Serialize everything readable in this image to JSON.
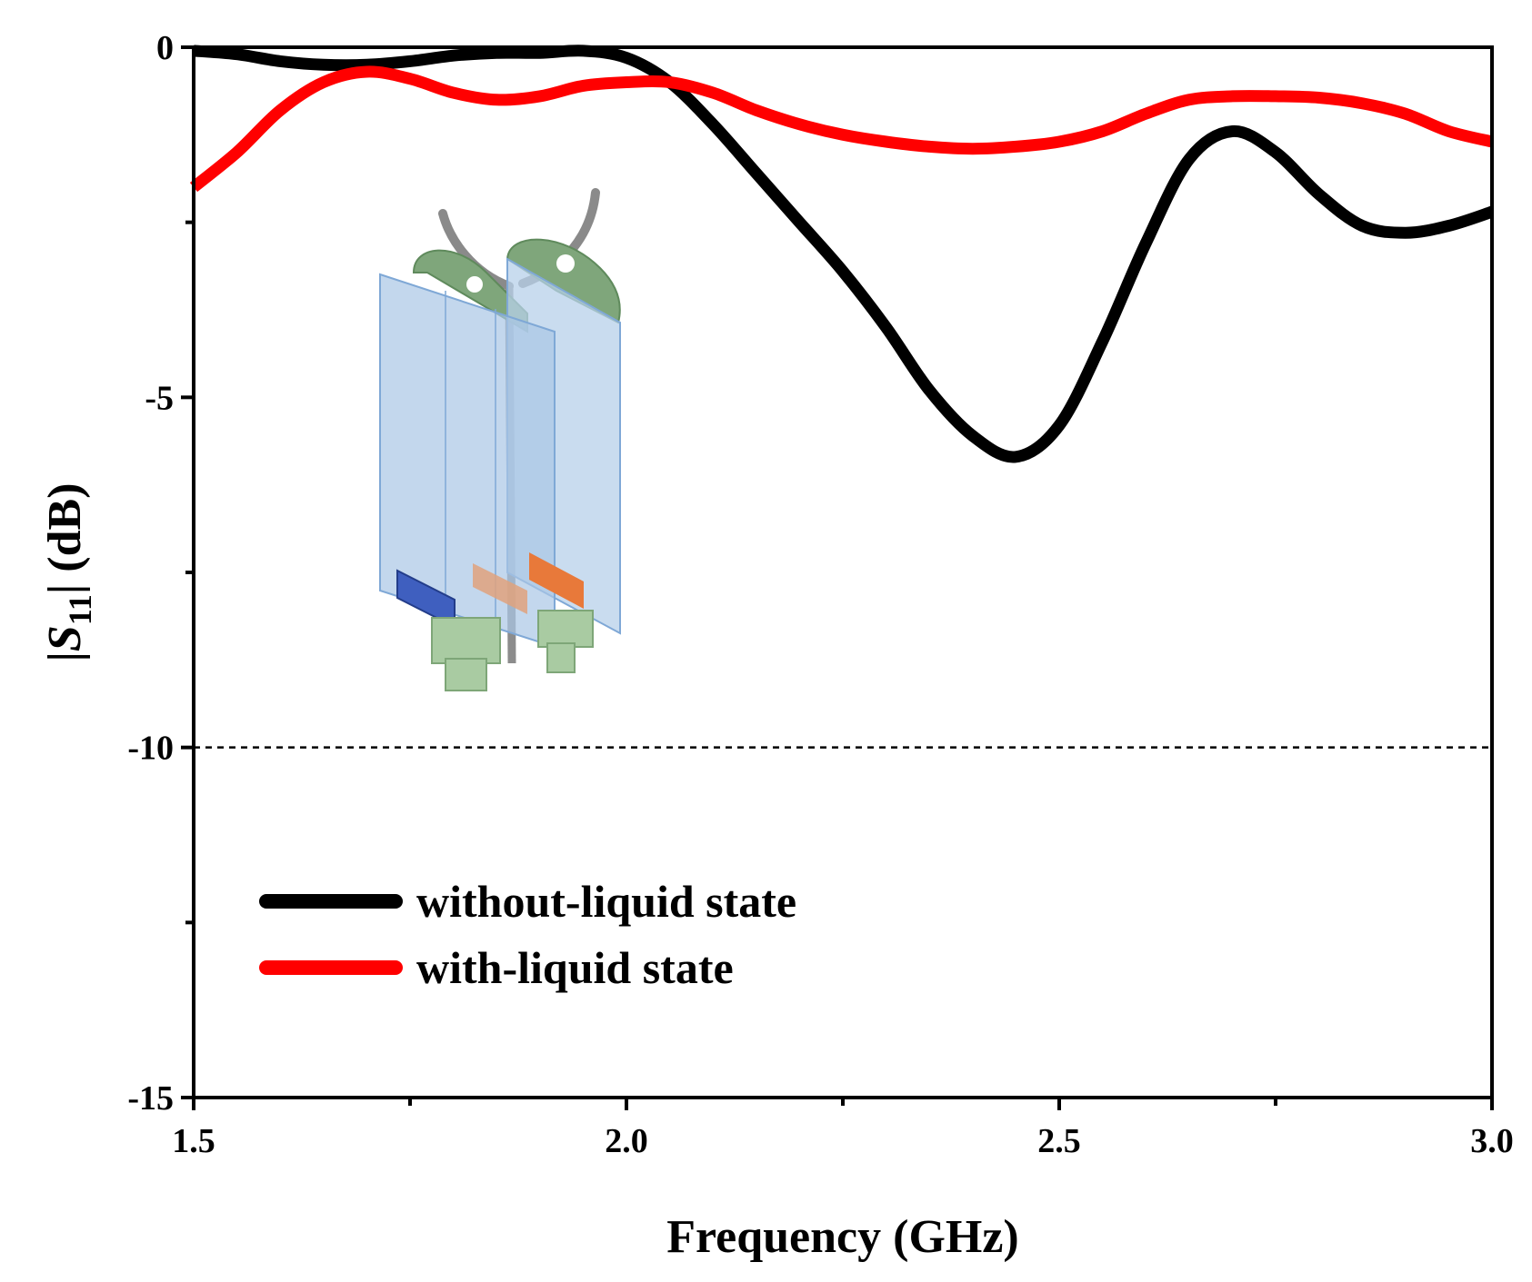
{
  "chart_data": {
    "type": "line",
    "title": "",
    "xlabel": "Frequency (GHz)",
    "ylabel_parts": {
      "prefix": "|",
      "symbol": "S",
      "subscript": "11",
      "suffix": "| (dB)"
    },
    "xlim": [
      1.5,
      3.0
    ],
    "ylim": [
      -15,
      0
    ],
    "x_major_ticks": [
      1.5,
      2.0,
      2.5,
      3.0
    ],
    "x_tick_labels": [
      "1.5",
      "2.0",
      "2.5",
      "3.0"
    ],
    "x_minor_ticks": [
      1.75,
      2.25,
      2.75
    ],
    "y_major_ticks": [
      0,
      -5,
      -10,
      -15
    ],
    "y_tick_labels": [
      "0",
      "-5",
      "-10",
      "-15"
    ],
    "y_minor_ticks": [
      -2.5,
      -7.5,
      -12.5
    ],
    "reference_line": {
      "y": -10,
      "style": "dashed"
    },
    "legend_position": "bottom-left",
    "series": [
      {
        "name": "without-liquid state",
        "color": "#000000",
        "x": [
          1.5,
          1.55,
          1.6,
          1.65,
          1.7,
          1.75,
          1.8,
          1.85,
          1.9,
          1.95,
          2.0,
          2.05,
          2.1,
          2.15,
          2.2,
          2.25,
          2.3,
          2.35,
          2.4,
          2.45,
          2.5,
          2.55,
          2.6,
          2.65,
          2.7,
          2.75,
          2.8,
          2.85,
          2.9,
          2.95,
          3.0
        ],
        "y": [
          -0.05,
          -0.1,
          -0.2,
          -0.25,
          -0.25,
          -0.2,
          -0.12,
          -0.08,
          -0.08,
          -0.05,
          -0.15,
          -0.5,
          -1.1,
          -1.8,
          -2.5,
          -3.2,
          -4.0,
          -4.9,
          -5.55,
          -5.85,
          -5.4,
          -4.2,
          -2.8,
          -1.6,
          -1.2,
          -1.5,
          -2.1,
          -2.55,
          -2.65,
          -2.55,
          -2.35
        ]
      },
      {
        "name": "with-liquid state",
        "color": "#ff0000",
        "x": [
          1.5,
          1.55,
          1.6,
          1.65,
          1.7,
          1.75,
          1.8,
          1.85,
          1.9,
          1.95,
          2.0,
          2.05,
          2.1,
          2.15,
          2.2,
          2.25,
          2.3,
          2.35,
          2.4,
          2.45,
          2.5,
          2.55,
          2.6,
          2.65,
          2.7,
          2.75,
          2.8,
          2.85,
          2.9,
          2.95,
          3.0
        ],
        "y": [
          -2.0,
          -1.5,
          -0.9,
          -0.5,
          -0.35,
          -0.45,
          -0.65,
          -0.75,
          -0.7,
          -0.55,
          -0.5,
          -0.5,
          -0.65,
          -0.9,
          -1.1,
          -1.25,
          -1.35,
          -1.42,
          -1.45,
          -1.42,
          -1.35,
          -1.2,
          -0.95,
          -0.75,
          -0.7,
          -0.7,
          -0.72,
          -0.8,
          -0.95,
          -1.2,
          -1.35
        ]
      }
    ]
  },
  "inset": {
    "description_name": "antenna-model-illustration"
  }
}
